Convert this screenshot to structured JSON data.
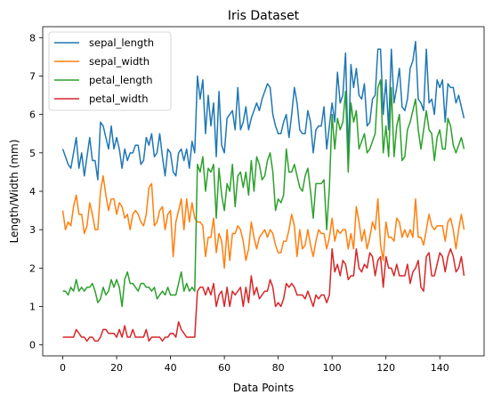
{
  "chart_data": {
    "type": "line",
    "title": "Iris Dataset",
    "xlabel": "Data Points",
    "ylabel": "Length/Width (mm)",
    "xlim": [
      -7.45,
      156.45
    ],
    "ylim": [
      -0.285,
      8.285
    ],
    "xticks": [
      0,
      20,
      40,
      60,
      80,
      100,
      120,
      140
    ],
    "yticks": [
      0,
      1,
      2,
      3,
      4,
      5,
      6,
      7,
      8
    ],
    "grid": false,
    "legend_position": "top-left",
    "x": [
      0,
      1,
      2,
      3,
      4,
      5,
      6,
      7,
      8,
      9,
      10,
      11,
      12,
      13,
      14,
      15,
      16,
      17,
      18,
      19,
      20,
      21,
      22,
      23,
      24,
      25,
      26,
      27,
      28,
      29,
      30,
      31,
      32,
      33,
      34,
      35,
      36,
      37,
      38,
      39,
      40,
      41,
      42,
      43,
      44,
      45,
      46,
      47,
      48,
      49,
      50,
      51,
      52,
      53,
      54,
      55,
      56,
      57,
      58,
      59,
      60,
      61,
      62,
      63,
      64,
      65,
      66,
      67,
      68,
      69,
      70,
      71,
      72,
      73,
      74,
      75,
      76,
      77,
      78,
      79,
      80,
      81,
      82,
      83,
      84,
      85,
      86,
      87,
      88,
      89,
      90,
      91,
      92,
      93,
      94,
      95,
      96,
      97,
      98,
      99,
      100,
      101,
      102,
      103,
      104,
      105,
      106,
      107,
      108,
      109,
      110,
      111,
      112,
      113,
      114,
      115,
      116,
      117,
      118,
      119,
      120,
      121,
      122,
      123,
      124,
      125,
      126,
      127,
      128,
      129,
      130,
      131,
      132,
      133,
      134,
      135,
      136,
      137,
      138,
      139,
      140,
      141,
      142,
      143,
      144,
      145,
      146,
      147,
      148,
      149
    ],
    "series": [
      {
        "name": "sepal_length",
        "color": "#1f77b4",
        "values": [
          5.1,
          4.9,
          4.7,
          4.6,
          5.0,
          5.4,
          4.6,
          5.0,
          4.4,
          4.9,
          5.4,
          4.8,
          4.8,
          4.3,
          5.8,
          5.7,
          5.4,
          5.1,
          5.7,
          5.1,
          5.4,
          5.1,
          4.6,
          5.1,
          4.8,
          5.0,
          5.0,
          5.2,
          5.2,
          4.7,
          4.8,
          5.4,
          5.2,
          5.5,
          4.9,
          5.0,
          5.5,
          4.9,
          4.4,
          5.1,
          5.0,
          4.5,
          4.4,
          5.0,
          5.1,
          4.8,
          5.1,
          4.6,
          5.3,
          5.0,
          7.0,
          6.4,
          6.9,
          5.5,
          6.5,
          5.7,
          6.3,
          4.9,
          6.6,
          5.2,
          5.0,
          5.9,
          6.0,
          6.1,
          5.6,
          6.7,
          5.6,
          5.8,
          6.2,
          5.6,
          5.9,
          6.1,
          6.3,
          6.1,
          6.4,
          6.6,
          6.8,
          6.7,
          6.0,
          5.7,
          5.5,
          5.5,
          5.8,
          6.0,
          5.4,
          6.0,
          6.7,
          6.3,
          5.6,
          5.5,
          5.5,
          6.1,
          5.8,
          5.0,
          5.6,
          5.7,
          5.7,
          6.2,
          5.1,
          5.7,
          6.3,
          5.8,
          7.1,
          6.3,
          6.5,
          7.6,
          4.9,
          7.3,
          6.7,
          7.2,
          6.5,
          6.4,
          6.8,
          5.7,
          5.8,
          6.4,
          6.5,
          7.7,
          7.7,
          6.0,
          6.9,
          5.6,
          7.7,
          6.3,
          6.7,
          7.2,
          6.2,
          6.1,
          6.4,
          7.2,
          7.4,
          7.9,
          6.4,
          6.3,
          6.1,
          7.7,
          6.3,
          6.4,
          6.0,
          6.9,
          6.7,
          6.9,
          5.8,
          6.8,
          6.7,
          6.7,
          6.3,
          6.5,
          6.2,
          5.9
        ]
      },
      {
        "name": "sepal_width",
        "color": "#ff7f0e",
        "values": [
          3.5,
          3.0,
          3.2,
          3.1,
          3.6,
          3.9,
          3.4,
          3.4,
          2.9,
          3.1,
          3.7,
          3.4,
          3.0,
          3.0,
          4.0,
          4.4,
          3.9,
          3.5,
          3.8,
          3.8,
          3.4,
          3.7,
          3.6,
          3.3,
          3.4,
          3.0,
          3.4,
          3.5,
          3.4,
          3.2,
          3.1,
          3.4,
          4.1,
          4.2,
          3.1,
          3.2,
          3.5,
          3.6,
          3.0,
          3.4,
          3.5,
          2.3,
          3.2,
          3.5,
          3.8,
          3.0,
          3.8,
          3.2,
          3.7,
          3.3,
          3.2,
          3.2,
          3.1,
          2.3,
          2.8,
          2.8,
          3.3,
          2.4,
          2.9,
          2.7,
          2.0,
          3.0,
          2.2,
          2.9,
          2.9,
          3.1,
          3.0,
          2.7,
          2.2,
          2.5,
          3.2,
          2.8,
          2.5,
          2.8,
          2.9,
          3.0,
          2.8,
          3.0,
          2.9,
          2.6,
          2.4,
          2.4,
          2.7,
          2.7,
          3.0,
          3.4,
          3.1,
          2.3,
          3.0,
          2.5,
          2.6,
          3.0,
          2.6,
          2.3,
          2.7,
          3.0,
          2.9,
          2.9,
          2.5,
          2.8,
          3.3,
          2.7,
          3.0,
          2.9,
          3.0,
          3.0,
          2.5,
          2.9,
          2.5,
          3.6,
          3.2,
          2.7,
          3.0,
          2.5,
          2.8,
          3.2,
          3.0,
          3.8,
          2.6,
          2.2,
          3.2,
          2.8,
          2.8,
          2.7,
          3.3,
          3.2,
          2.8,
          3.0,
          2.8,
          3.0,
          2.8,
          3.8,
          2.8,
          2.8,
          2.6,
          3.0,
          3.4,
          3.1,
          3.0,
          3.1,
          3.1,
          3.1,
          2.7,
          3.2,
          3.3,
          3.0,
          2.5,
          3.0,
          3.4,
          3.0
        ]
      },
      {
        "name": "petal_length",
        "color": "#2ca02c",
        "values": [
          1.4,
          1.4,
          1.3,
          1.5,
          1.4,
          1.7,
          1.4,
          1.5,
          1.4,
          1.5,
          1.5,
          1.6,
          1.4,
          1.1,
          1.2,
          1.5,
          1.3,
          1.4,
          1.7,
          1.5,
          1.7,
          1.5,
          1.0,
          1.7,
          1.9,
          1.6,
          1.6,
          1.5,
          1.4,
          1.6,
          1.6,
          1.5,
          1.5,
          1.4,
          1.5,
          1.2,
          1.3,
          1.4,
          1.3,
          1.5,
          1.3,
          1.3,
          1.3,
          1.6,
          1.9,
          1.4,
          1.6,
          1.4,
          1.5,
          1.4,
          4.7,
          4.5,
          4.9,
          4.0,
          4.6,
          4.5,
          4.7,
          3.3,
          4.6,
          3.9,
          3.5,
          4.2,
          4.0,
          4.7,
          3.6,
          4.4,
          4.5,
          4.1,
          4.5,
          3.9,
          4.8,
          4.0,
          4.9,
          4.7,
          4.3,
          4.4,
          4.8,
          5.0,
          4.5,
          3.5,
          3.8,
          3.7,
          3.9,
          5.1,
          4.5,
          4.5,
          4.7,
          4.4,
          4.1,
          4.0,
          4.4,
          4.6,
          4.0,
          3.3,
          4.2,
          4.2,
          4.2,
          4.3,
          3.0,
          4.1,
          6.0,
          5.1,
          5.9,
          5.6,
          5.8,
          6.6,
          4.5,
          6.3,
          5.8,
          6.1,
          5.1,
          5.3,
          5.5,
          5.0,
          5.1,
          5.3,
          5.5,
          6.7,
          6.9,
          5.0,
          5.7,
          4.9,
          6.7,
          4.9,
          5.7,
          6.0,
          4.8,
          4.9,
          5.6,
          5.8,
          6.1,
          6.4,
          5.6,
          5.1,
          5.6,
          6.1,
          5.6,
          5.5,
          4.8,
          5.4,
          5.6,
          5.1,
          5.1,
          5.9,
          5.7,
          5.2,
          5.0,
          5.2,
          5.4,
          5.1
        ]
      },
      {
        "name": "petal_width",
        "color": "#d62728",
        "values": [
          0.2,
          0.2,
          0.2,
          0.2,
          0.2,
          0.4,
          0.3,
          0.2,
          0.2,
          0.1,
          0.2,
          0.2,
          0.1,
          0.1,
          0.2,
          0.4,
          0.4,
          0.3,
          0.3,
          0.3,
          0.2,
          0.4,
          0.2,
          0.5,
          0.2,
          0.2,
          0.4,
          0.2,
          0.2,
          0.2,
          0.2,
          0.4,
          0.1,
          0.2,
          0.2,
          0.2,
          0.2,
          0.1,
          0.2,
          0.2,
          0.3,
          0.3,
          0.2,
          0.6,
          0.4,
          0.3,
          0.2,
          0.2,
          0.2,
          0.2,
          1.4,
          1.5,
          1.5,
          1.3,
          1.5,
          1.3,
          1.6,
          1.0,
          1.3,
          1.4,
          1.0,
          1.5,
          1.0,
          1.4,
          1.3,
          1.4,
          1.5,
          1.0,
          1.5,
          1.1,
          1.8,
          1.3,
          1.5,
          1.2,
          1.3,
          1.4,
          1.4,
          1.7,
          1.5,
          1.0,
          1.1,
          1.0,
          1.2,
          1.6,
          1.5,
          1.6,
          1.5,
          1.3,
          1.3,
          1.3,
          1.2,
          1.4,
          1.2,
          1.0,
          1.3,
          1.2,
          1.3,
          1.3,
          1.1,
          1.3,
          2.5,
          1.9,
          2.1,
          1.8,
          2.2,
          2.1,
          1.7,
          1.8,
          1.8,
          2.5,
          2.0,
          1.9,
          2.1,
          2.0,
          2.4,
          2.3,
          1.8,
          2.2,
          2.3,
          1.5,
          2.3,
          2.0,
          2.0,
          1.8,
          2.1,
          1.8,
          1.8,
          1.8,
          2.1,
          1.6,
          1.9,
          2.0,
          2.2,
          1.5,
          1.4,
          2.3,
          2.4,
          1.8,
          1.8,
          2.1,
          2.4,
          2.3,
          1.9,
          2.3,
          2.5,
          2.3,
          1.9,
          2.0,
          2.3,
          1.8
        ]
      }
    ]
  }
}
